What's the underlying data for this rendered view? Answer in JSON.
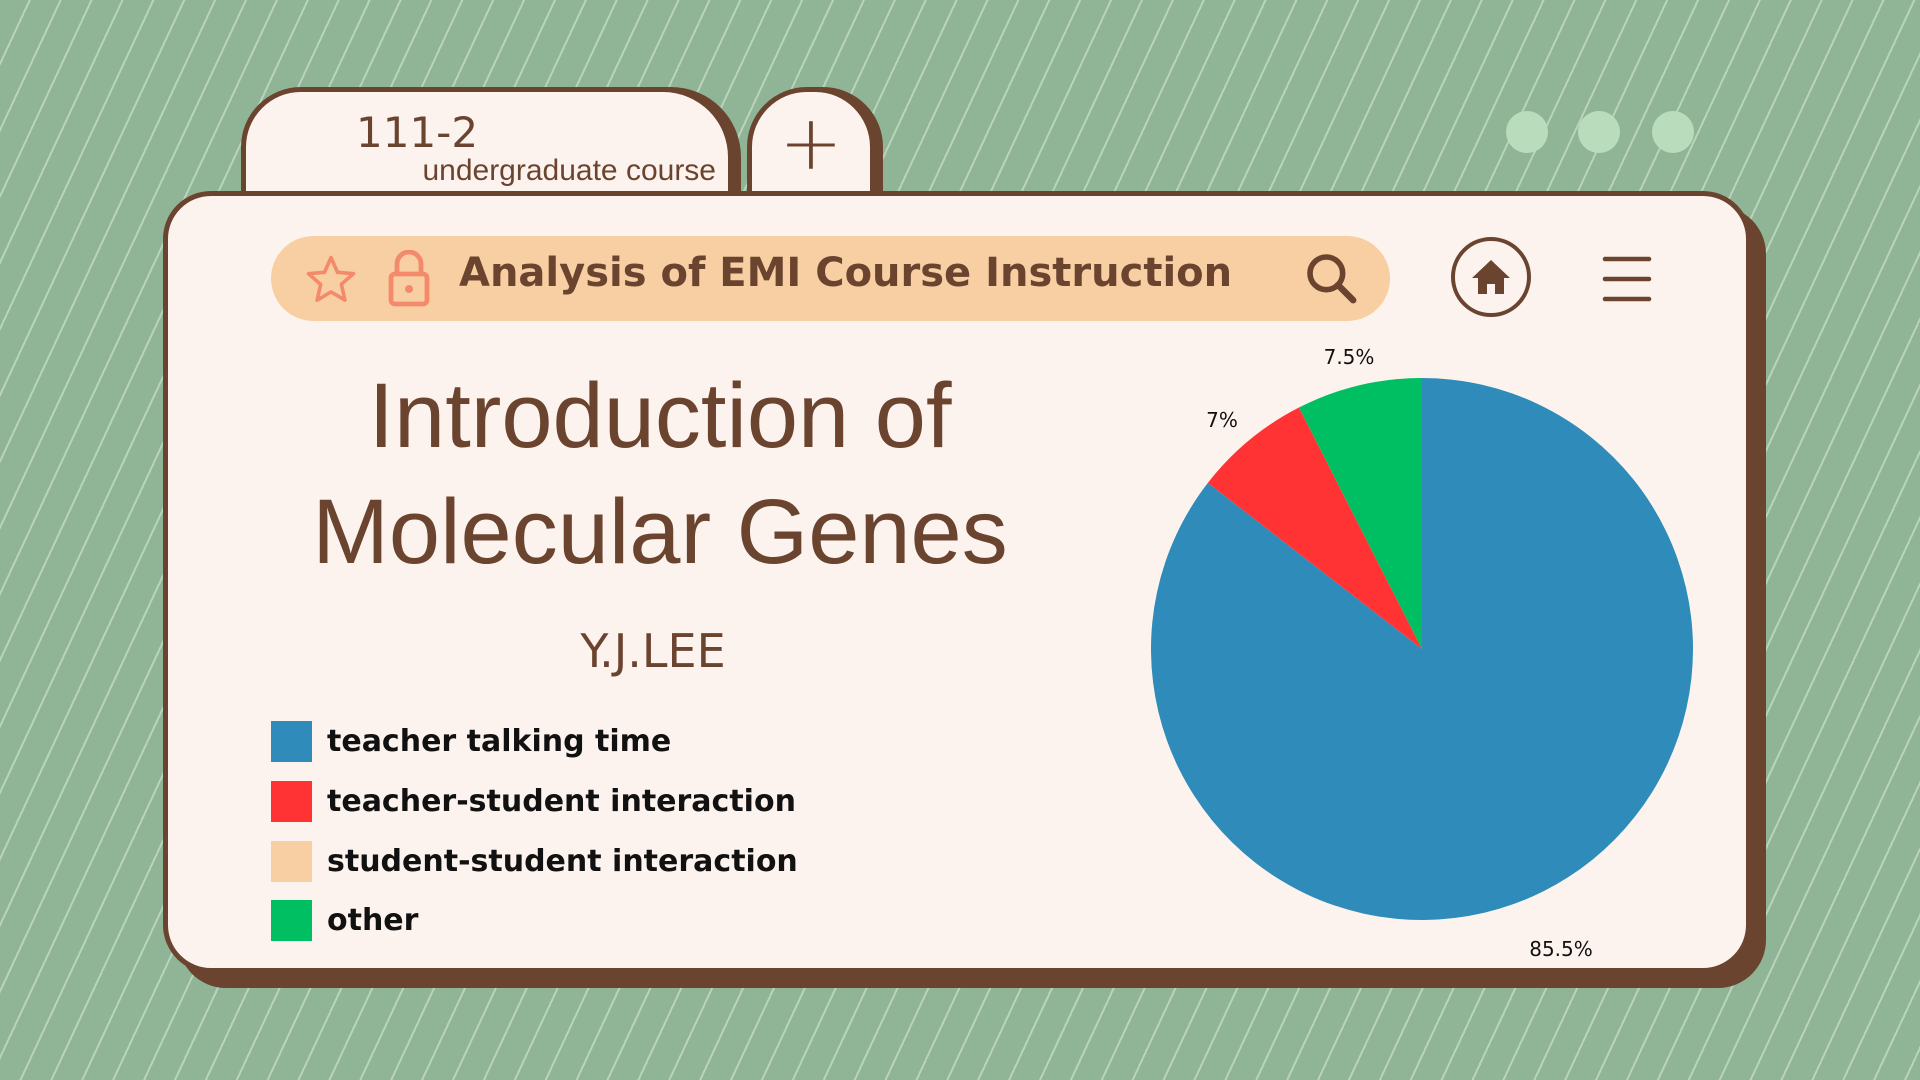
{
  "tabs": [
    {
      "label": "111-2",
      "sublabel": "undergraduate course"
    },
    {
      "label": "+"
    }
  ],
  "window_dots": 3,
  "search_bar": {
    "title": "Analysis of EMI Course Instruction",
    "icons": [
      "star-icon",
      "lock-icon",
      "search-icon"
    ]
  },
  "nav": {
    "icons": [
      "home-icon",
      "menu-icon"
    ]
  },
  "heading": {
    "line1": "Introduction of",
    "line2": "Molecular Genes"
  },
  "author": "Y.J.LEE",
  "colors": {
    "background": "#8fb596",
    "card": "#fdf3ee",
    "brown": "#6b4430",
    "search_bar": "#f8cfa2",
    "icon_accent": "#f48a6c"
  },
  "chart_data": {
    "type": "pie",
    "start": "12 o'clock, clockwise",
    "legend_placement": "left",
    "categories": [
      "teacher talking time",
      "teacher-student interaction",
      "student-student interaction",
      "other"
    ],
    "values": [
      85.5,
      7,
      0,
      7.5
    ],
    "labels": [
      "85.5%",
      "7%",
      "",
      "7.5%"
    ],
    "colors": [
      "#2e8bba",
      "#ff3333",
      "#f8cfa2",
      "#00bf63"
    ]
  }
}
